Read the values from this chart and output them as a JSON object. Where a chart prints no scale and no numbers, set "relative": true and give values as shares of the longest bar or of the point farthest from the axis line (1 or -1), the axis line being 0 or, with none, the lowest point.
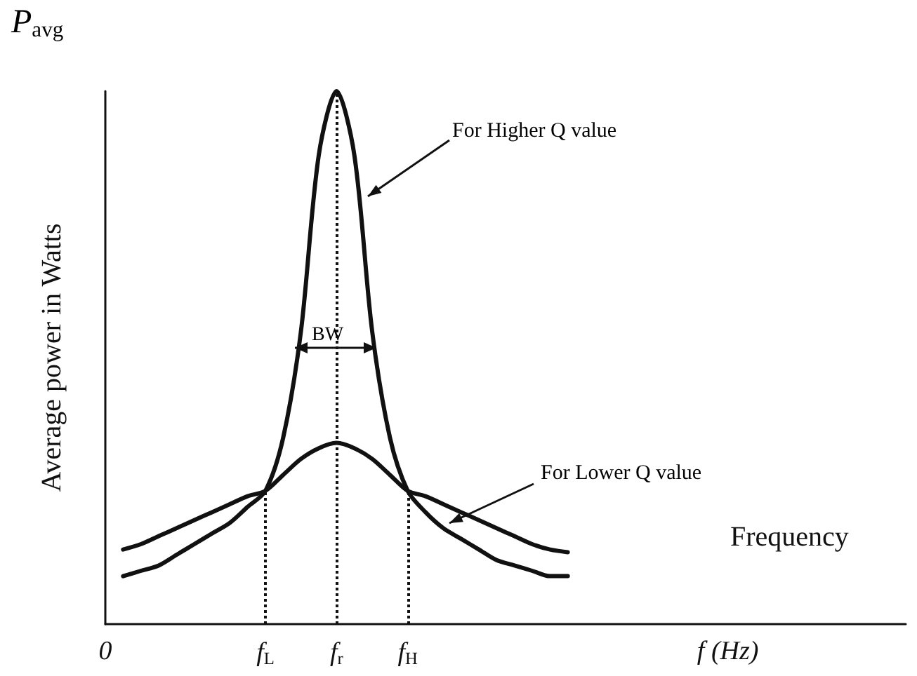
{
  "chart_data": {
    "type": "line",
    "relative": true,
    "ylabel": "Average power in Watts",
    "xlabel": "Frequency",
    "categories": [
      "0",
      null,
      null,
      null,
      null,
      null,
      null,
      null,
      null,
      "f$_{L}$",
      null,
      null,
      null,
      "f$_{r}$",
      null,
      null,
      null,
      "f$_{H}$",
      null,
      null,
      null,
      null,
      null,
      null,
      null,
      null,
      null,
      null,
      null,
      null,
      null,
      null,
      null,
      null,
      null,
      "f (Hz)",
      null,
      null,
      null,
      null,
      null,
      null,
      null,
      null,
      null,
      null
    ],
    "series": [
      {
        "color": "#111111",
        "values": [
          null,
          0.09,
          0.1,
          0.11,
          0.13,
          0.15,
          0.17,
          0.19,
          0.22,
          0.25,
          0.35,
          0.55,
          0.88,
          1.0,
          0.88,
          0.55,
          0.35,
          0.25,
          0.21,
          0.18,
          0.16,
          0.14,
          0.12,
          0.11,
          0.1,
          0.09,
          0.09,
          null,
          null,
          null,
          null,
          null,
          null,
          null,
          null,
          null,
          null,
          null,
          null,
          null,
          null,
          null,
          null,
          null,
          null,
          null
        ]
      },
      {
        "color": "#111111",
        "values": [
          null,
          0.14,
          0.15,
          0.165,
          0.18,
          0.195,
          0.21,
          0.225,
          0.24,
          0.25,
          0.28,
          0.31,
          0.33,
          0.34,
          0.33,
          0.31,
          0.28,
          0.25,
          0.24,
          0.225,
          0.21,
          0.195,
          0.18,
          0.165,
          0.15,
          0.14,
          0.135,
          null,
          null,
          null,
          null,
          null,
          null,
          null,
          null,
          null,
          null,
          null,
          null,
          null,
          null,
          null,
          null,
          null,
          null,
          null
        ]
      }
    ],
    "ref_lines": [
      {
        "axis": "x",
        "value": "f$_{L}$",
        "line_style": "dotted"
      },
      {
        "axis": "x",
        "value": "f$_{r}$",
        "line_style": "dotted"
      },
      {
        "axis": "x",
        "value": "f$_{H}$",
        "line_style": "dotted"
      }
    ],
    "annotations": [
      "P$_{avg}$",
      "For Higher Q value",
      "For Lower Q value",
      "BW"
    ],
    "grid": false,
    "marker": "none",
    "line_style": "solid"
  }
}
